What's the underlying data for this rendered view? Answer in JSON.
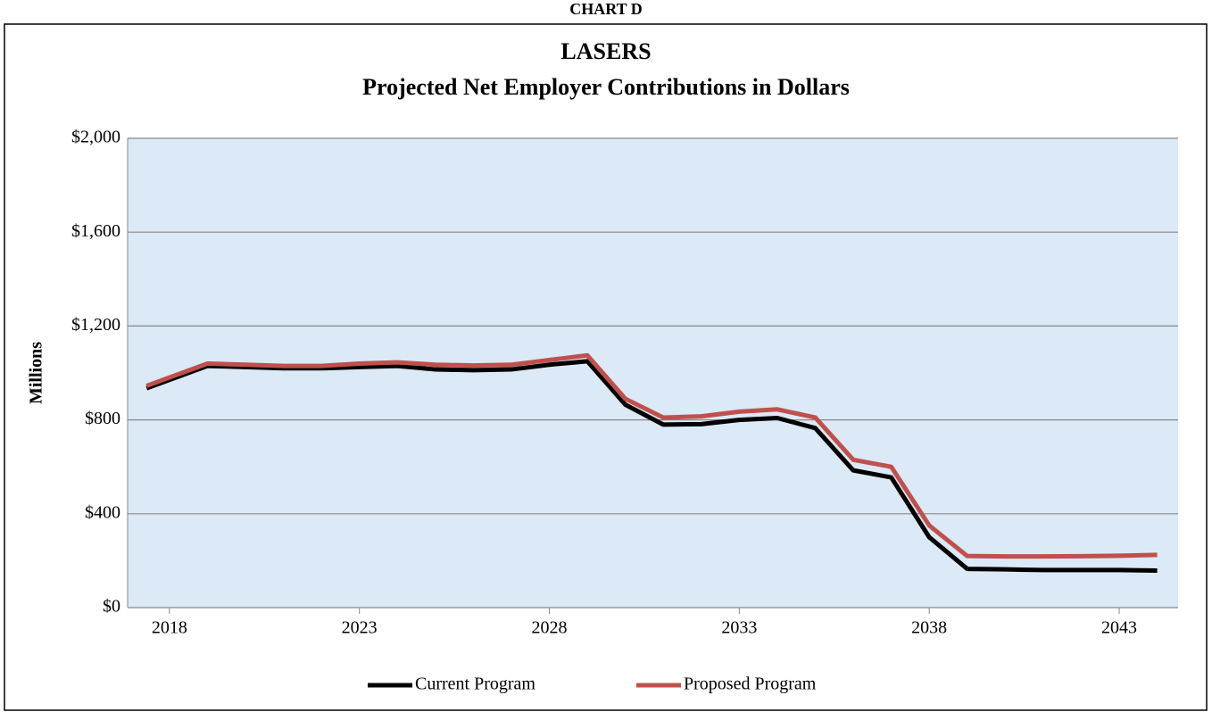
{
  "chart_data": {
    "type": "line",
    "header": "CHART D",
    "title": "LASERS",
    "subtitle": "Projected Net Employer Contributions in Dollars",
    "y_label": "Millions",
    "x": [
      2017.4,
      2019,
      2020,
      2021,
      2022,
      2023,
      2024,
      2025,
      2026,
      2027,
      2028,
      2029,
      2030,
      2031,
      2032,
      2033,
      2034,
      2035,
      2036,
      2037,
      2038,
      2039,
      2040,
      2041,
      2042,
      2043,
      2044
    ],
    "series": [
      {
        "name": "Current Program",
        "color": "#000000",
        "values": [
          935,
          1030,
          1025,
          1020,
          1020,
          1025,
          1030,
          1015,
          1012,
          1015,
          1035,
          1050,
          865,
          780,
          782,
          800,
          808,
          765,
          585,
          555,
          300,
          165,
          163,
          160,
          160,
          160,
          158
        ]
      },
      {
        "name": "Proposed Program",
        "color": "#c0504d",
        "values": [
          945,
          1040,
          1035,
          1030,
          1030,
          1040,
          1045,
          1035,
          1032,
          1035,
          1055,
          1075,
          890,
          810,
          815,
          835,
          845,
          810,
          630,
          600,
          350,
          220,
          218,
          218,
          219,
          221,
          225
        ]
      }
    ],
    "xlim": [
      2016.9,
      2044.55
    ],
    "xticks": [
      2018,
      2023,
      2028,
      2033,
      2038,
      2043
    ],
    "ylim": [
      0,
      2000
    ],
    "yticks": [
      {
        "value": 0,
        "label": "$0"
      },
      {
        "value": 400,
        "label": "$400"
      },
      {
        "value": 800,
        "label": "$800"
      },
      {
        "value": 1200,
        "label": "$1,200"
      },
      {
        "value": 1600,
        "label": "$1,600"
      },
      {
        "value": 2000,
        "label": "$2,000"
      }
    ],
    "grid": true,
    "legend": "bottom",
    "background": "#dce9f6"
  }
}
